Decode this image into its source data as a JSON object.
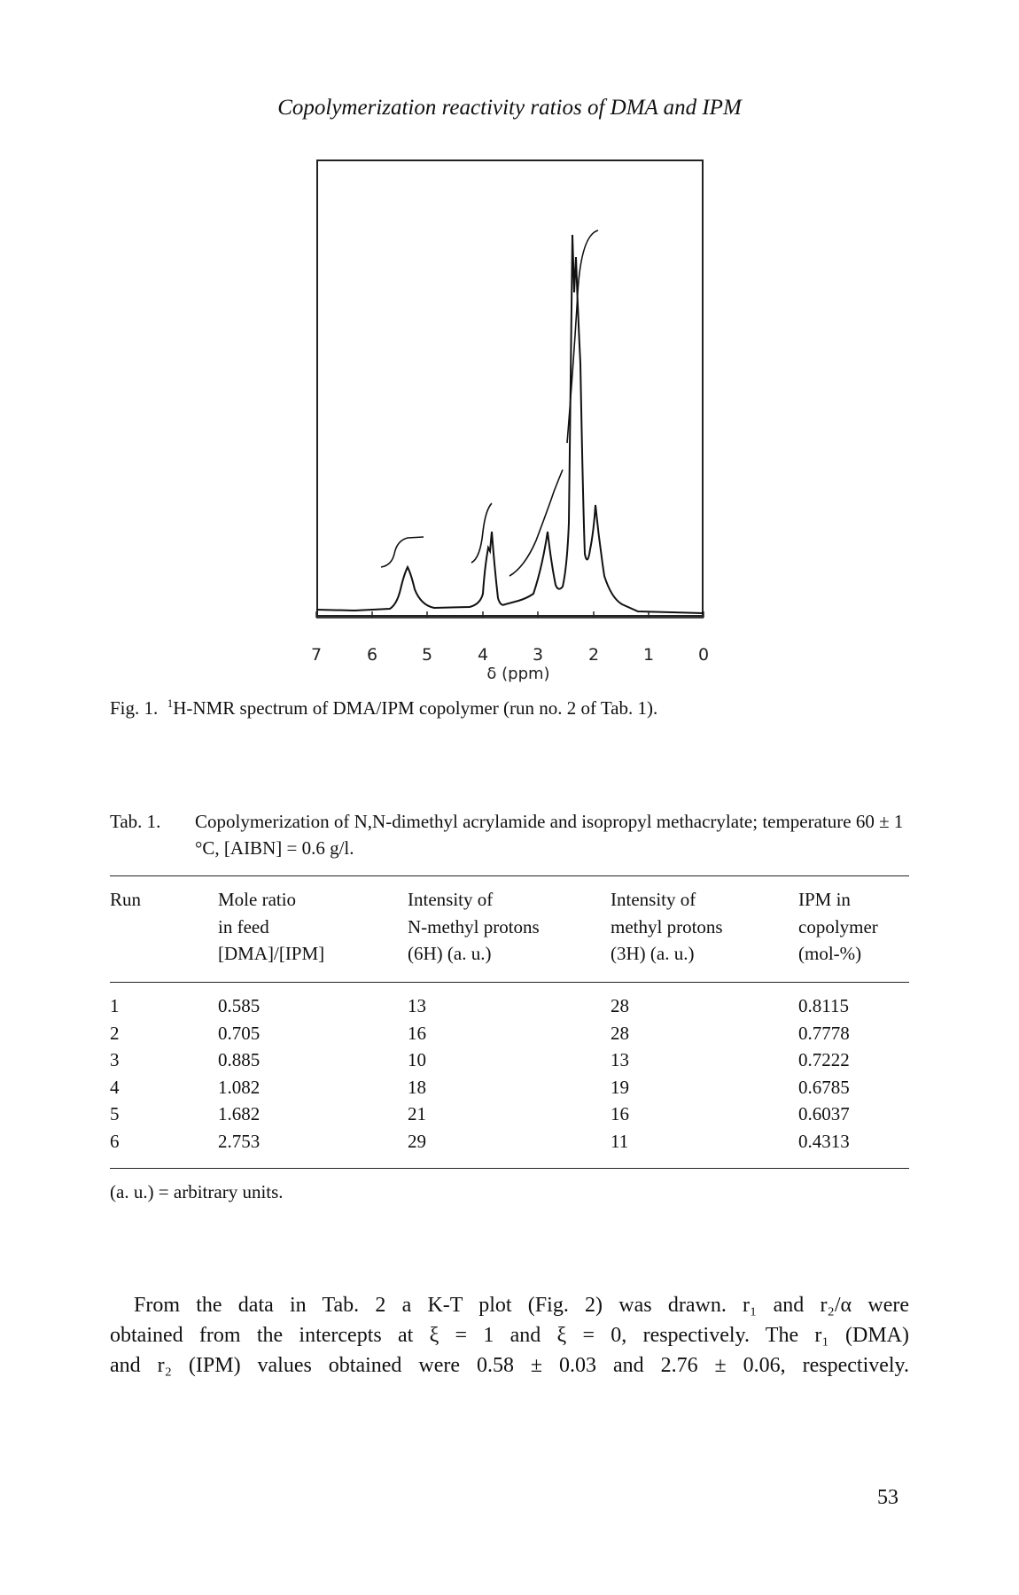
{
  "header": "Copolymerization reactivity ratios of DMA and IPM",
  "figure": {
    "x_ticks": [
      "7",
      "6",
      "5",
      "4",
      "3",
      "2",
      "1",
      "0"
    ],
    "x_label": "δ (ppm)",
    "caption_label": "Fig. 1.",
    "caption_sup": "1",
    "caption_text": "H-NMR spectrum of DMA/IPM copolymer (run no. 2 of Tab. 1)."
  },
  "table": {
    "label": "Tab. 1.",
    "caption": "Copolymerization of N,N-dimethyl acrylamide and isopropyl methacrylate; temperature 60 ± 1 °C, [AIBN] = 0.6 g/l.",
    "columns": [
      [
        "Run"
      ],
      [
        "Mole ratio",
        "in feed",
        "[DMA]/[IPM]"
      ],
      [
        "Intensity of",
        "N-methyl protons",
        "(6H) (a. u.)"
      ],
      [
        "Intensity of",
        "methyl protons",
        "(3H) (a. u.)"
      ],
      [
        "IPM in",
        "copolymer",
        "(mol-%)"
      ]
    ],
    "rows": [
      [
        "1",
        "0.585",
        "13",
        "28",
        "0.8115"
      ],
      [
        "2",
        "0.705",
        "16",
        "28",
        "0.7778"
      ],
      [
        "3",
        "0.885",
        "10",
        "13",
        "0.7222"
      ],
      [
        "4",
        "1.082",
        "18",
        "19",
        "0.6785"
      ],
      [
        "5",
        "1.682",
        "21",
        "16",
        "0.6037"
      ],
      [
        "6",
        "2.753",
        "29",
        "11",
        "0.4313"
      ]
    ],
    "footnote": "(a. u.) = arbitrary units."
  },
  "paragraph": [
    "From the data in Tab. 2 a K-T plot (Fig. 2) was drawn. r₁ and r₂/α were",
    "obtained from the intercepts at ξ = 1 and ξ = 0, respectively. The r₁ (DMA)",
    "and r₂ (IPM) values obtained were 0.58 ± 0.03 and 2.76 ± 0.06, respectively."
  ],
  "page_number": "53"
}
